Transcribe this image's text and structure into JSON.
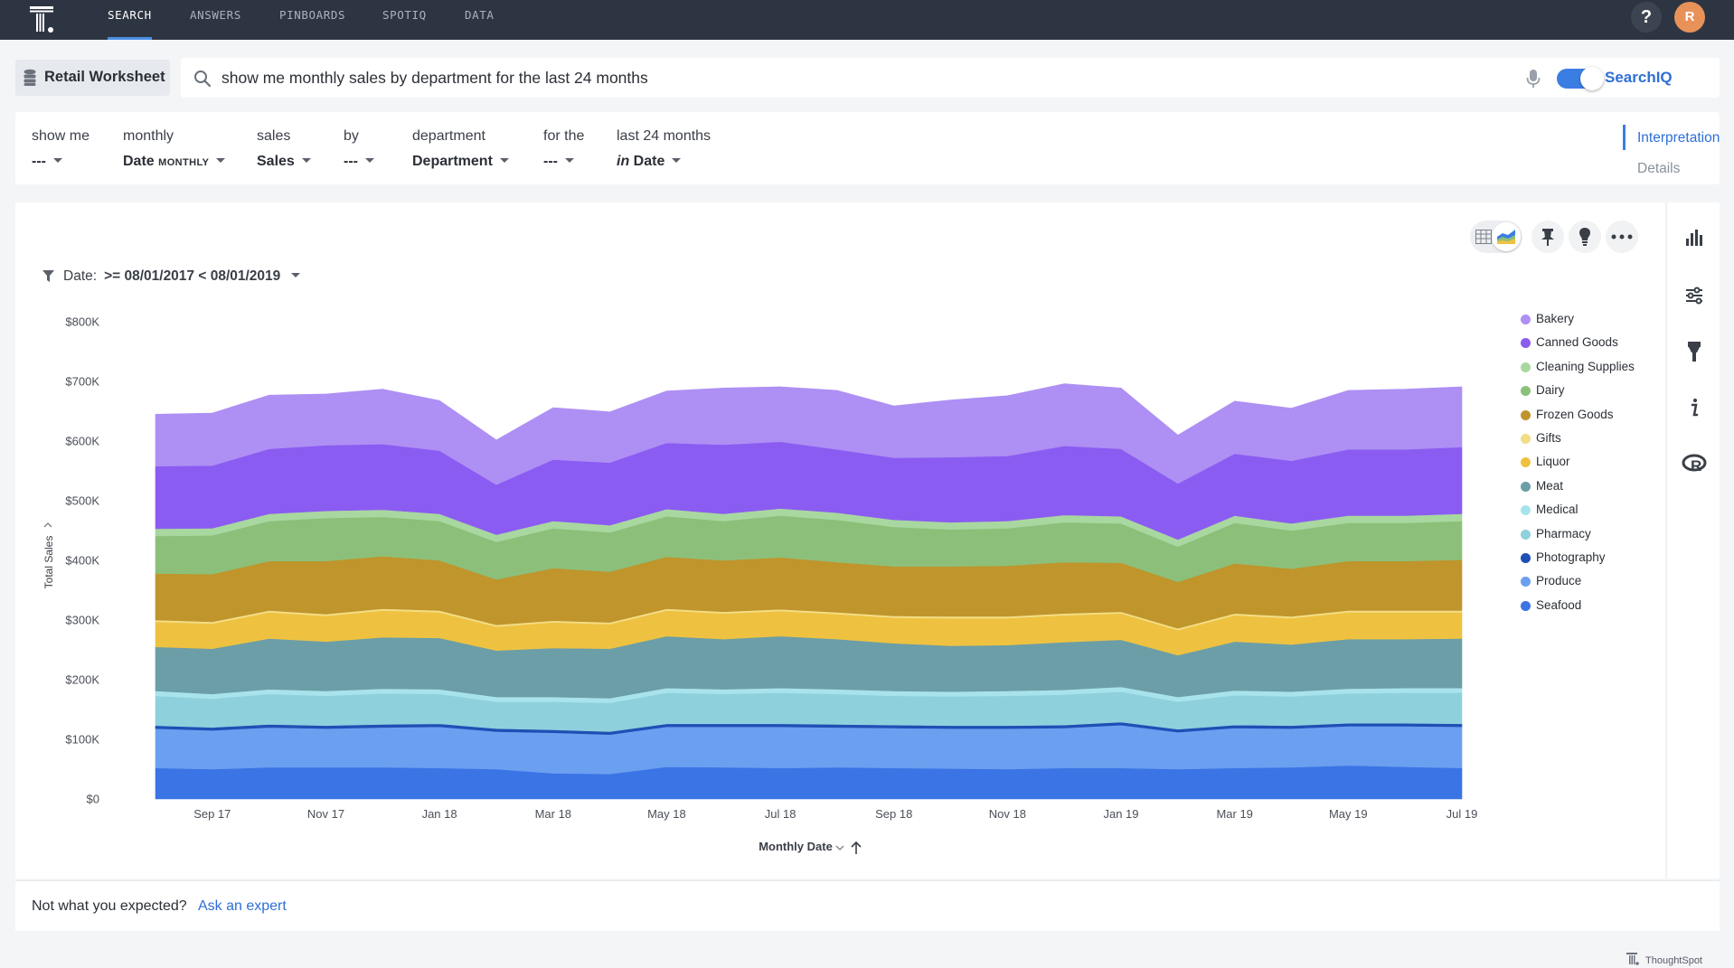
{
  "nav": {
    "tabs": [
      {
        "label": "SEARCH",
        "active": true
      },
      {
        "label": "ANSWERS"
      },
      {
        "label": "PINBOARDS"
      },
      {
        "label": "SPOTIQ"
      },
      {
        "label": "DATA"
      }
    ],
    "help_label": "?",
    "avatar_initial": "R"
  },
  "worksheet": {
    "label": "Retail Worksheet"
  },
  "search": {
    "query": "show me monthly sales by department for the last 24 months",
    "searchiq_label": "SearchIQ",
    "searchiq_enabled": true
  },
  "tokens": [
    {
      "top": "show me",
      "bottom": "---",
      "style": "plain"
    },
    {
      "top": "monthly",
      "bottom": "Date",
      "suffix": "MONTHLY",
      "style": "suffix"
    },
    {
      "top": "sales",
      "bottom": "Sales",
      "style": "plain"
    },
    {
      "top": "by",
      "bottom": "---",
      "style": "plain"
    },
    {
      "top": "department",
      "bottom": "Department",
      "style": "plain"
    },
    {
      "top": "for the",
      "bottom": "---",
      "style": "plain"
    },
    {
      "top": "last 24 months",
      "prefix": "in",
      "bottom": "Date",
      "style": "prefix"
    }
  ],
  "interpretation_tabs": {
    "selected": "Interpretation",
    "other": "Details"
  },
  "filter": {
    "label": "Date:",
    "value": ">= 08/01/2017 < 08/01/2019"
  },
  "legend_title": "",
  "footer": {
    "question": "Not what you expected?",
    "link": "Ask an expert",
    "brand": "ThoughtSpot"
  },
  "colors": {
    "accent": "#3b7ee3",
    "nav_bg": "#2e3542"
  },
  "toolbar_icons": [
    "table-view-icon",
    "chart-view-icon",
    "pin-icon",
    "insight-bulb-icon",
    "more-icon"
  ],
  "right_icons": [
    "chart-type-icon",
    "configure-icon",
    "format-brush-icon",
    "info-icon",
    "r-analysis-icon"
  ],
  "chart_data": {
    "type": "area",
    "stacked": true,
    "xlabel": "Monthly Date",
    "ylabel": "Total Sales",
    "y_ticks": [
      "$0",
      "$100K",
      "$200K",
      "$300K",
      "$400K",
      "$500K",
      "$600K",
      "$700K",
      "$800K"
    ],
    "ylim": [
      0,
      800000
    ],
    "x_tick_labels": [
      "Sep 17",
      "Nov 17",
      "Jan 18",
      "Mar 18",
      "May 18",
      "Jul 18",
      "Sep 18",
      "Nov 18",
      "Jan 19",
      "Mar 19",
      "May 19",
      "Jul 19"
    ],
    "categories": [
      "Aug 17",
      "Sep 17",
      "Oct 17",
      "Nov 17",
      "Dec 17",
      "Jan 18",
      "Feb 18",
      "Mar 18",
      "Apr 18",
      "May 18",
      "Jun 18",
      "Jul 18",
      "Aug 18",
      "Sep 18",
      "Oct 18",
      "Nov 18",
      "Dec 18",
      "Jan 19",
      "Feb 19",
      "Mar 19",
      "Apr 19",
      "May 19",
      "Jun 19",
      "Jul 19"
    ],
    "series": [
      {
        "name": "Seafood",
        "color": "#3a74e5",
        "values": [
          52000,
          50000,
          53000,
          53000,
          53000,
          52000,
          50000,
          43000,
          42000,
          54000,
          53000,
          52000,
          53000,
          52000,
          51000,
          50000,
          52000,
          52000,
          50000,
          52000,
          53000,
          56000,
          54000,
          52000
        ]
      },
      {
        "name": "Produce",
        "color": "#6b9ff0",
        "values": [
          66000,
          65000,
          67000,
          65000,
          67000,
          69000,
          63000,
          68000,
          66000,
          67000,
          68000,
          69000,
          67000,
          67000,
          67000,
          68000,
          67000,
          72000,
          62000,
          67000,
          65000,
          66000,
          68000,
          69000
        ]
      },
      {
        "name": "Photography",
        "color": "#1f4fb5",
        "values": [
          5000,
          5000,
          5000,
          5000,
          5000,
          5000,
          5000,
          5000,
          5000,
          5000,
          5000,
          5000,
          5000,
          5000,
          5000,
          5000,
          5000,
          5000,
          5000,
          5000,
          5000,
          5000,
          5000,
          5000
        ]
      },
      {
        "name": "Pharmacy",
        "color": "#8fd0dd",
        "values": [
          50000,
          48000,
          51000,
          50000,
          52000,
          50000,
          45000,
          47000,
          48000,
          52000,
          50000,
          52000,
          51000,
          49000,
          49000,
          50000,
          51000,
          51000,
          46000,
          50000,
          49000,
          50000,
          51000,
          52000
        ]
      },
      {
        "name": "Medical",
        "color": "#a8e3ec",
        "values": [
          8000,
          8000,
          8000,
          8000,
          8000,
          8000,
          8000,
          8000,
          8000,
          8000,
          8000,
          8000,
          8000,
          8000,
          8000,
          8000,
          8000,
          8000,
          8000,
          8000,
          8000,
          8000,
          8000,
          8000
        ]
      },
      {
        "name": "Meat",
        "color": "#6c9ea7",
        "values": [
          74000,
          76000,
          85000,
          83000,
          86000,
          86000,
          78000,
          82000,
          83000,
          87000,
          84000,
          87000,
          84000,
          80000,
          77000,
          77000,
          80000,
          79000,
          70000,
          82000,
          79000,
          83000,
          82000,
          83000
        ]
      },
      {
        "name": "Liquor",
        "color": "#eec240",
        "values": [
          42000,
          42000,
          44000,
          43000,
          45000,
          43000,
          40000,
          43000,
          41000,
          43000,
          43000,
          42000,
          42000,
          43000,
          46000,
          45000,
          45000,
          44000,
          42000,
          44000,
          44000,
          45000,
          45000,
          44000
        ]
      },
      {
        "name": "Gifts",
        "color": "#f3dd86",
        "values": [
          3000,
          3000,
          3000,
          3000,
          3000,
          3000,
          3000,
          3000,
          3000,
          3000,
          3000,
          3000,
          3000,
          3000,
          3000,
          3000,
          3000,
          3000,
          3000,
          3000,
          3000,
          3000,
          3000,
          3000
        ]
      },
      {
        "name": "Frozen Goods",
        "color": "#bf952c",
        "values": [
          78000,
          80000,
          83000,
          89000,
          88000,
          84000,
          76000,
          88000,
          85000,
          87000,
          86000,
          87000,
          84000,
          83000,
          84000,
          85000,
          86000,
          82000,
          78000,
          84000,
          80000,
          83000,
          83000,
          85000
        ]
      },
      {
        "name": "Dairy",
        "color": "#8cc07a",
        "values": [
          63000,
          65000,
          67000,
          72000,
          66000,
          66000,
          63000,
          67000,
          66000,
          68000,
          66000,
          70000,
          71000,
          66000,
          62000,
          63000,
          67000,
          66000,
          59000,
          68000,
          64000,
          64000,
          64000,
          65000
        ]
      },
      {
        "name": "Cleaning Supplies",
        "color": "#a8d8a0",
        "values": [
          12000,
          12000,
          12000,
          12000,
          12000,
          12000,
          12000,
          12000,
          12000,
          12000,
          12000,
          12000,
          12000,
          12000,
          12000,
          12000,
          12000,
          12000,
          12000,
          12000,
          12000,
          12000,
          12000,
          12000
        ]
      },
      {
        "name": "Canned Goods",
        "color": "#8b5cf1",
        "values": [
          105000,
          105000,
          109000,
          110000,
          110000,
          106000,
          84000,
          103000,
          105000,
          111000,
          116000,
          112000,
          106000,
          104000,
          109000,
          109000,
          116000,
          113000,
          94000,
          104000,
          105000,
          111000,
          111000,
          112000
        ]
      },
      {
        "name": "Bakery",
        "color": "#ae8ff4",
        "values": [
          87000,
          88000,
          90000,
          86000,
          92000,
          84000,
          75000,
          87000,
          85000,
          87000,
          95000,
          92000,
          99000,
          87000,
          96000,
          101000,
          104000,
          102000,
          81000,
          88000,
          88000,
          99000,
          101000,
          101000
        ]
      }
    ],
    "legend_order": [
      "Bakery",
      "Canned Goods",
      "Cleaning Supplies",
      "Dairy",
      "Frozen Goods",
      "Gifts",
      "Liquor",
      "Meat",
      "Medical",
      "Pharmacy",
      "Photography",
      "Produce",
      "Seafood"
    ],
    "legend_position": "right",
    "grid": false
  }
}
